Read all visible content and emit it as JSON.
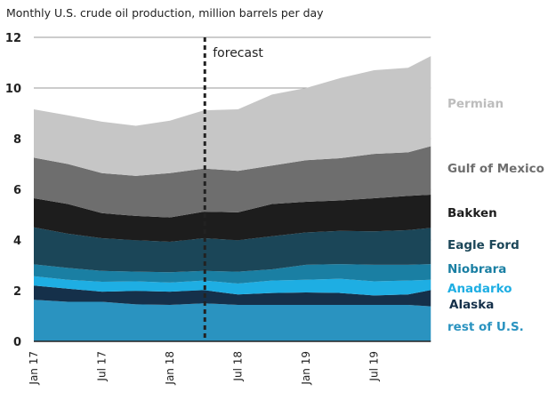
{
  "chart_data": {
    "type": "area",
    "stacked": true,
    "title": "Monthly U.S. crude oil production, million barrels per day",
    "xlabel": "",
    "ylabel": "",
    "ylim": [
      0,
      12
    ],
    "yticks": [
      0,
      2,
      4,
      6,
      8,
      10,
      12
    ],
    "xlim": [
      "2017-01",
      "2019-12"
    ],
    "xticks": [
      {
        "x": "2017-01",
        "label": "Jan 17"
      },
      {
        "x": "2017-07",
        "label": "Jul 17"
      },
      {
        "x": "2018-01",
        "label": "Jan 18"
      },
      {
        "x": "2018-07",
        "label": "Jul 18"
      },
      {
        "x": "2019-01",
        "label": "Jan 19"
      },
      {
        "x": "2019-07",
        "label": "Jul 19"
      }
    ],
    "grid": "horizontal",
    "legend": "right, labels aligned to series",
    "annotation": {
      "x": "2018-04",
      "label": "forecast",
      "style": "dashed vertical line"
    },
    "x": [
      "2017-01",
      "2017-04",
      "2017-07",
      "2017-10",
      "2018-01",
      "2018-04",
      "2018-07",
      "2018-10",
      "2019-01",
      "2019-04",
      "2019-07",
      "2019-10",
      "2019-12"
    ],
    "series": [
      {
        "name": "rest of U.S.",
        "color": "#2a93c0",
        "values": [
          1.64,
          1.56,
          1.56,
          1.46,
          1.44,
          1.5,
          1.44,
          1.44,
          1.44,
          1.44,
          1.44,
          1.44,
          1.38
        ]
      },
      {
        "name": "Alaska",
        "color": "#15304a",
        "values": [
          0.56,
          0.52,
          0.4,
          0.53,
          0.52,
          0.52,
          0.41,
          0.47,
          0.49,
          0.47,
          0.37,
          0.41,
          0.64
        ]
      },
      {
        "name": "Anadarko",
        "color": "#1eaee3",
        "values": [
          0.37,
          0.35,
          0.39,
          0.38,
          0.36,
          0.38,
          0.43,
          0.49,
          0.5,
          0.56,
          0.56,
          0.55,
          0.41
        ]
      },
      {
        "name": "Niobrara",
        "color": "#1a7fa3",
        "values": [
          0.47,
          0.47,
          0.43,
          0.38,
          0.41,
          0.38,
          0.47,
          0.44,
          0.59,
          0.58,
          0.65,
          0.62,
          0.62
        ]
      },
      {
        "name": "Eagle Ford",
        "color": "#1b4658",
        "values": [
          1.46,
          1.35,
          1.29,
          1.24,
          1.2,
          1.29,
          1.24,
          1.31,
          1.28,
          1.31,
          1.32,
          1.37,
          1.43
        ]
      },
      {
        "name": "Bakken",
        "color": "#1d1d1d",
        "values": [
          1.15,
          1.17,
          0.99,
          0.96,
          0.96,
          1.05,
          1.1,
          1.27,
          1.21,
          1.2,
          1.31,
          1.35,
          1.31
        ]
      },
      {
        "name": "Gulf of Mexico",
        "color": "#6e6e6e",
        "values": [
          1.6,
          1.58,
          1.58,
          1.58,
          1.75,
          1.7,
          1.64,
          1.52,
          1.64,
          1.67,
          1.75,
          1.72,
          1.91
        ]
      },
      {
        "name": "Permian",
        "color": "#c6c6c6",
        "label_color": "#bdbdbd",
        "values": [
          1.91,
          1.92,
          2.03,
          1.98,
          2.07,
          2.3,
          2.43,
          2.8,
          2.85,
          3.16,
          3.3,
          3.34,
          3.56
        ]
      }
    ]
  }
}
